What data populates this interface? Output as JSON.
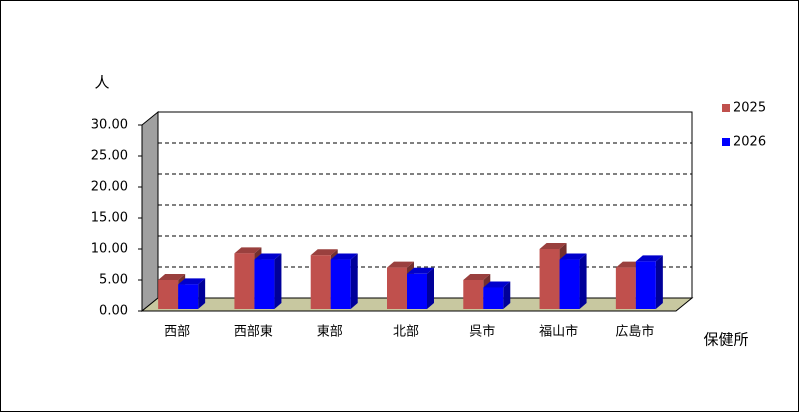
{
  "chart_data": {
    "type": "bar3d",
    "y_label": "人",
    "x_label": "保健所",
    "categories": [
      "西部",
      "西部東",
      "東部",
      "北部",
      "呉市",
      "福山市",
      "広島市"
    ],
    "series": [
      {
        "name": "2025",
        "color": "#c0504d",
        "values": [
          5.0,
          9.3,
          9.0,
          7.0,
          5.0,
          10.0,
          7.0
        ]
      },
      {
        "name": "2026",
        "color": "#0000ff",
        "values": [
          4.3,
          8.3,
          8.3,
          6.0,
          3.8,
          8.3,
          8.0
        ]
      }
    ],
    "ylim": [
      0,
      30
    ],
    "yticks": [
      {
        "value": 0,
        "label": "0.00"
      },
      {
        "value": 5,
        "label": "5.00"
      },
      {
        "value": 10,
        "label": "10.00"
      },
      {
        "value": 15,
        "label": "15.00"
      },
      {
        "value": 20,
        "label": "20.00"
      },
      {
        "value": 25,
        "label": "25.00"
      },
      {
        "value": 30,
        "label": "30.00"
      }
    ],
    "grid": true,
    "legend": "right"
  }
}
